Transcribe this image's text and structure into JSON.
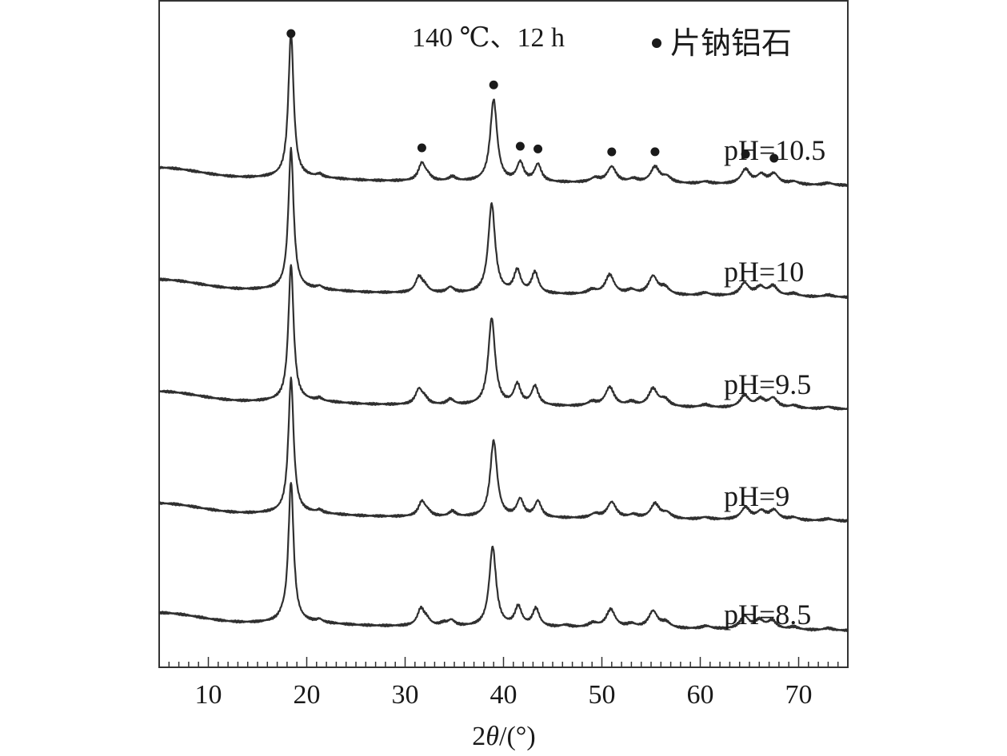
{
  "chart_data": {
    "type": "line",
    "annotation": "140 ℃、12 h",
    "legend": {
      "marker": "●",
      "label": "片钠铝石",
      "placement": "top-right"
    },
    "xlabel_prefix": "2",
    "xlabel_symbol": "θ",
    "xlabel_suffix": "/(°)",
    "xlim": [
      5,
      75
    ],
    "xticks": [
      10,
      20,
      30,
      40,
      50,
      60,
      70
    ],
    "y_axis_visible": false,
    "grid": false,
    "peak_markers_series": "pH=10.5",
    "peak_markers_2theta": [
      18.4,
      31.7,
      39.0,
      41.7,
      43.5,
      51.0,
      55.4,
      64.6,
      67.5
    ],
    "series": [
      {
        "name": "pH=10.5",
        "peaks": [
          {
            "x": 18.4,
            "h": 1.0
          },
          {
            "x": 21.3,
            "h": 0.02
          },
          {
            "x": 31.7,
            "h": 0.12
          },
          {
            "x": 32.3,
            "h": 0.03
          },
          {
            "x": 34.8,
            "h": 0.03
          },
          {
            "x": 39.0,
            "h": 0.57
          },
          {
            "x": 41.7,
            "h": 0.13
          },
          {
            "x": 43.5,
            "h": 0.12
          },
          {
            "x": 49.3,
            "h": 0.03
          },
          {
            "x": 51.0,
            "h": 0.11
          },
          {
            "x": 53.2,
            "h": 0.025
          },
          {
            "x": 55.4,
            "h": 0.11
          },
          {
            "x": 56.6,
            "h": 0.04
          },
          {
            "x": 60.5,
            "h": 0.015
          },
          {
            "x": 64.6,
            "h": 0.1
          },
          {
            "x": 66.2,
            "h": 0.06
          },
          {
            "x": 67.5,
            "h": 0.07
          },
          {
            "x": 69.5,
            "h": 0.02
          },
          {
            "x": 73.0,
            "h": 0.015
          }
        ]
      },
      {
        "name": "pH=10",
        "peaks": [
          {
            "x": 18.4,
            "h": 1.0
          },
          {
            "x": 21.3,
            "h": 0.02
          },
          {
            "x": 31.4,
            "h": 0.11
          },
          {
            "x": 32.0,
            "h": 0.04
          },
          {
            "x": 34.6,
            "h": 0.04
          },
          {
            "x": 38.8,
            "h": 0.64
          },
          {
            "x": 41.4,
            "h": 0.16
          },
          {
            "x": 43.2,
            "h": 0.15
          },
          {
            "x": 49.0,
            "h": 0.03
          },
          {
            "x": 50.8,
            "h": 0.14
          },
          {
            "x": 53.0,
            "h": 0.03
          },
          {
            "x": 55.2,
            "h": 0.13
          },
          {
            "x": 56.4,
            "h": 0.05
          },
          {
            "x": 60.5,
            "h": 0.02
          },
          {
            "x": 64.5,
            "h": 0.09
          },
          {
            "x": 66.1,
            "h": 0.06
          },
          {
            "x": 67.4,
            "h": 0.07
          },
          {
            "x": 69.5,
            "h": 0.02
          },
          {
            "x": 73.0,
            "h": 0.015
          }
        ]
      },
      {
        "name": "pH=9.5",
        "peaks": [
          {
            "x": 18.4,
            "h": 1.0
          },
          {
            "x": 21.3,
            "h": 0.02
          },
          {
            "x": 31.4,
            "h": 0.11
          },
          {
            "x": 32.0,
            "h": 0.04
          },
          {
            "x": 34.6,
            "h": 0.04
          },
          {
            "x": 38.8,
            "h": 0.64
          },
          {
            "x": 41.4,
            "h": 0.15
          },
          {
            "x": 43.2,
            "h": 0.14
          },
          {
            "x": 49.0,
            "h": 0.03
          },
          {
            "x": 50.8,
            "h": 0.14
          },
          {
            "x": 53.0,
            "h": 0.03
          },
          {
            "x": 55.2,
            "h": 0.13
          },
          {
            "x": 56.4,
            "h": 0.05
          },
          {
            "x": 60.5,
            "h": 0.02
          },
          {
            "x": 64.5,
            "h": 0.09
          },
          {
            "x": 66.1,
            "h": 0.06
          },
          {
            "x": 67.4,
            "h": 0.07
          },
          {
            "x": 69.5,
            "h": 0.02
          },
          {
            "x": 73.0,
            "h": 0.015
          }
        ]
      },
      {
        "name": "pH=9",
        "peaks": [
          {
            "x": 18.4,
            "h": 1.0
          },
          {
            "x": 21.3,
            "h": 0.02
          },
          {
            "x": 31.7,
            "h": 0.11
          },
          {
            "x": 32.3,
            "h": 0.03
          },
          {
            "x": 34.8,
            "h": 0.04
          },
          {
            "x": 39.0,
            "h": 0.57
          },
          {
            "x": 41.7,
            "h": 0.13
          },
          {
            "x": 43.5,
            "h": 0.12
          },
          {
            "x": 49.3,
            "h": 0.03
          },
          {
            "x": 51.0,
            "h": 0.12
          },
          {
            "x": 53.2,
            "h": 0.025
          },
          {
            "x": 55.4,
            "h": 0.11
          },
          {
            "x": 56.6,
            "h": 0.04
          },
          {
            "x": 60.5,
            "h": 0.015
          },
          {
            "x": 64.6,
            "h": 0.09
          },
          {
            "x": 66.2,
            "h": 0.06
          },
          {
            "x": 67.5,
            "h": 0.07
          },
          {
            "x": 69.5,
            "h": 0.02
          },
          {
            "x": 73.0,
            "h": 0.015
          }
        ]
      },
      {
        "name": "pH=8.5",
        "peaks": [
          {
            "x": 17.5,
            "h": 0.02
          },
          {
            "x": 18.4,
            "h": 1.0
          },
          {
            "x": 21.3,
            "h": 0.02
          },
          {
            "x": 31.6,
            "h": 0.12
          },
          {
            "x": 32.2,
            "h": 0.04
          },
          {
            "x": 33.9,
            "h": 0.02
          },
          {
            "x": 34.7,
            "h": 0.04
          },
          {
            "x": 38.9,
            "h": 0.57
          },
          {
            "x": 41.5,
            "h": 0.14
          },
          {
            "x": 43.3,
            "h": 0.13
          },
          {
            "x": 46.3,
            "h": 0.015
          },
          {
            "x": 49.1,
            "h": 0.03
          },
          {
            "x": 50.9,
            "h": 0.13
          },
          {
            "x": 53.0,
            "h": 0.025
          },
          {
            "x": 55.2,
            "h": 0.12
          },
          {
            "x": 56.5,
            "h": 0.04
          },
          {
            "x": 60.6,
            "h": 0.02
          },
          {
            "x": 64.5,
            "h": 0.09
          },
          {
            "x": 66.0,
            "h": 0.06
          },
          {
            "x": 67.3,
            "h": 0.06
          },
          {
            "x": 69.5,
            "h": 0.02
          },
          {
            "x": 73.0,
            "h": 0.015
          }
        ]
      }
    ]
  }
}
